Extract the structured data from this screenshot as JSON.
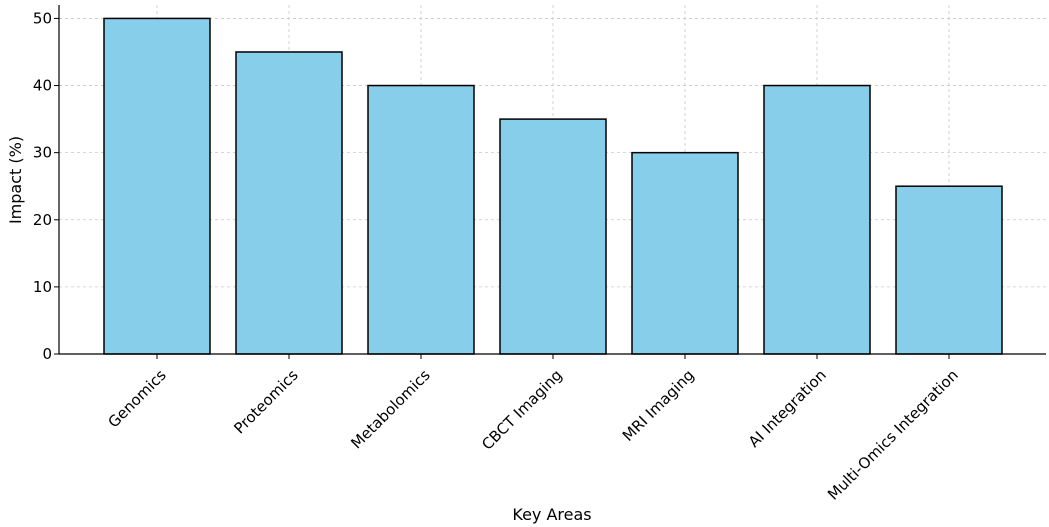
{
  "chart_data": {
    "type": "bar",
    "title": "",
    "xlabel": "Key Areas",
    "ylabel": "Impact (%)",
    "categories": [
      "Genomics",
      "Proteomics",
      "Metabolomics",
      "CBCT Imaging",
      "MRI Imaging",
      "AI Integration",
      "Multi-Omics Integration"
    ],
    "values": [
      50,
      45,
      40,
      35,
      30,
      40,
      25
    ],
    "ylim": [
      0,
      52
    ],
    "yticks": [
      0,
      10,
      20,
      30,
      40,
      50
    ],
    "grid": true,
    "bar_color": "#87ceeb",
    "edge_color": "#000000",
    "xtick_rotation": -45
  }
}
